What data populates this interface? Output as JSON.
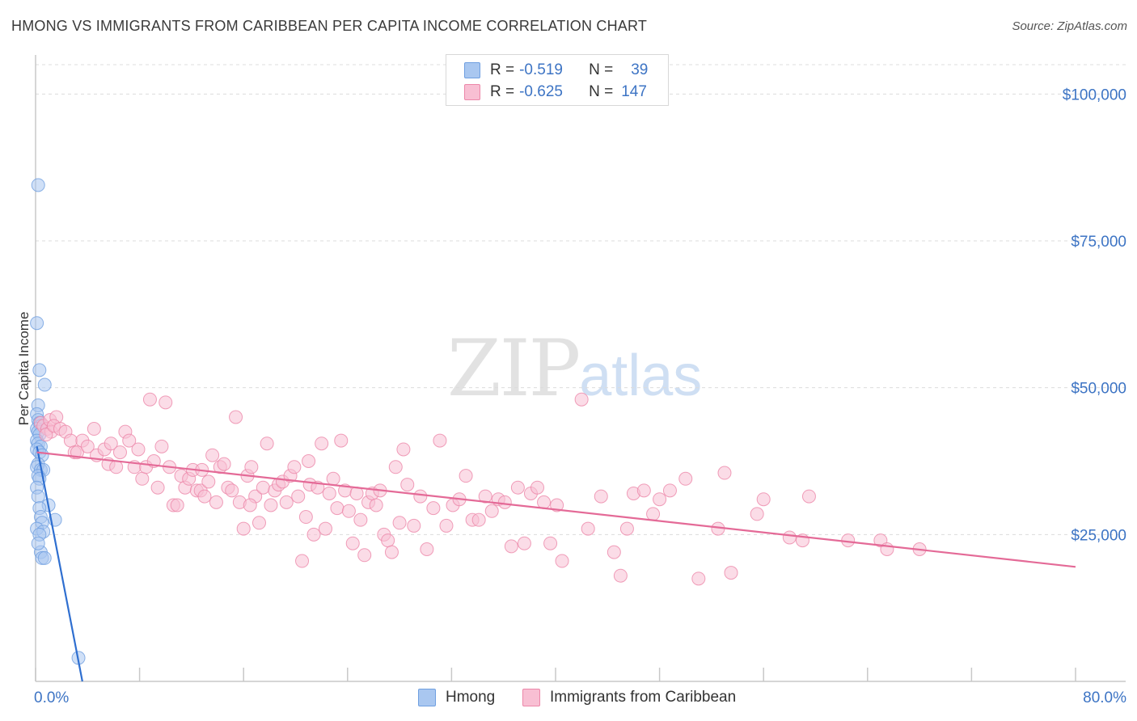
{
  "title": "HMONG VS IMMIGRANTS FROM CARIBBEAN PER CAPITA INCOME CORRELATION CHART",
  "source": "Source: ZipAtlas.com",
  "watermark": {
    "part1": "ZIP",
    "part2": "atlas"
  },
  "legend": {
    "rows": [
      {
        "r_label": "R =",
        "r_value": "-0.519",
        "n_label": "N =",
        "n_value": "39",
        "color": "#a9c7f0",
        "border": "#6f9fe0"
      },
      {
        "r_label": "R =",
        "r_value": "-0.625",
        "n_label": "N =",
        "n_value": "147",
        "color": "#f8bfd3",
        "border": "#ec87a9"
      }
    ]
  },
  "bottom_legend": [
    {
      "label": "Hmong",
      "color": "#a9c7f0",
      "border": "#6f9fe0"
    },
    {
      "label": "Immigrants from Caribbean",
      "color": "#f8bfd3",
      "border": "#ec87a9"
    }
  ],
  "chart_data": {
    "type": "scatter",
    "title": "HMONG VS IMMIGRANTS FROM CARIBBEAN PER CAPITA INCOME CORRELATION CHART",
    "xlabel": "",
    "ylabel": "Per Capita Income",
    "xlim": [
      0,
      80
    ],
    "ylim": [
      0,
      105000
    ],
    "x_tick_labels": [
      "0.0%",
      "80.0%"
    ],
    "y_ticks": [
      25000,
      50000,
      75000,
      100000
    ],
    "y_tick_labels": [
      "$25,000",
      "$50,000",
      "$75,000",
      "$100,000"
    ],
    "grid": true,
    "series": [
      {
        "name": "Hmong",
        "color": "#6f9fe0",
        "fill": "#a9c7f0",
        "trend": {
          "x": [
            0.1,
            3.6
          ],
          "y": [
            40000,
            0
          ]
        },
        "points": [
          [
            0.2,
            84500
          ],
          [
            0.1,
            61000
          ],
          [
            0.3,
            53000
          ],
          [
            0.7,
            50500
          ],
          [
            0.2,
            47000
          ],
          [
            0.1,
            45500
          ],
          [
            0.2,
            44500
          ],
          [
            0.3,
            44000
          ],
          [
            0.4,
            43500
          ],
          [
            0.1,
            43000
          ],
          [
            0.2,
            42500
          ],
          [
            0.3,
            42000
          ],
          [
            0.1,
            41000
          ],
          [
            0.2,
            40500
          ],
          [
            0.4,
            40000
          ],
          [
            0.1,
            39500
          ],
          [
            0.3,
            39000
          ],
          [
            0.5,
            38500
          ],
          [
            0.2,
            37000
          ],
          [
            0.1,
            36500
          ],
          [
            0.4,
            36000
          ],
          [
            0.6,
            36000
          ],
          [
            0.2,
            35000
          ],
          [
            0.3,
            34500
          ],
          [
            0.1,
            33000
          ],
          [
            0.2,
            31500
          ],
          [
            1.0,
            30000
          ],
          [
            0.3,
            29500
          ],
          [
            0.4,
            28000
          ],
          [
            1.5,
            27500
          ],
          [
            0.5,
            27000
          ],
          [
            0.1,
            26000
          ],
          [
            0.6,
            25500
          ],
          [
            0.3,
            25000
          ],
          [
            0.4,
            22000
          ],
          [
            0.5,
            21000
          ],
          [
            0.7,
            21000
          ],
          [
            0.2,
            23500
          ],
          [
            3.3,
            4000
          ]
        ]
      },
      {
        "name": "Immigrants from Caribbean",
        "color": "#ec87a9",
        "fill": "#f8bfd3",
        "trend": {
          "x": [
            0.1,
            80
          ],
          "y": [
            39000,
            19500
          ]
        },
        "points": [
          [
            0.4,
            44000
          ],
          [
            0.6,
            43500
          ],
          [
            0.9,
            43000
          ],
          [
            1.1,
            44500
          ],
          [
            1.2,
            42500
          ],
          [
            1.6,
            45000
          ],
          [
            0.8,
            42000
          ],
          [
            1.4,
            43500
          ],
          [
            1.9,
            43000
          ],
          [
            2.3,
            42500
          ],
          [
            2.7,
            41000
          ],
          [
            3.0,
            39000
          ],
          [
            3.2,
            39000
          ],
          [
            3.6,
            41000
          ],
          [
            4.0,
            40000
          ],
          [
            4.5,
            43000
          ],
          [
            4.7,
            38500
          ],
          [
            5.3,
            39500
          ],
          [
            5.6,
            37000
          ],
          [
            5.8,
            40500
          ],
          [
            6.2,
            36500
          ],
          [
            6.5,
            39000
          ],
          [
            6.9,
            42500
          ],
          [
            7.2,
            41000
          ],
          [
            7.6,
            36500
          ],
          [
            7.9,
            39500
          ],
          [
            8.2,
            34500
          ],
          [
            8.5,
            36500
          ],
          [
            8.8,
            48000
          ],
          [
            9.1,
            37500
          ],
          [
            9.4,
            33000
          ],
          [
            9.7,
            40000
          ],
          [
            10.0,
            47500
          ],
          [
            10.3,
            36500
          ],
          [
            10.6,
            30000
          ],
          [
            10.9,
            30000
          ],
          [
            11.2,
            35000
          ],
          [
            11.5,
            33000
          ],
          [
            11.8,
            34500
          ],
          [
            12.1,
            36000
          ],
          [
            12.4,
            32500
          ],
          [
            12.7,
            32500
          ],
          [
            13.0,
            31500
          ],
          [
            13.3,
            34000
          ],
          [
            13.6,
            38500
          ],
          [
            13.9,
            30500
          ],
          [
            14.2,
            36500
          ],
          [
            14.5,
            37000
          ],
          [
            14.8,
            33000
          ],
          [
            15.1,
            32500
          ],
          [
            15.4,
            45000
          ],
          [
            15.7,
            30500
          ],
          [
            16.0,
            26000
          ],
          [
            16.3,
            35000
          ],
          [
            16.6,
            36500
          ],
          [
            16.9,
            31500
          ],
          [
            17.2,
            27000
          ],
          [
            17.5,
            33000
          ],
          [
            17.8,
            40500
          ],
          [
            18.1,
            30000
          ],
          [
            18.4,
            32500
          ],
          [
            18.7,
            33500
          ],
          [
            19.0,
            34000
          ],
          [
            19.3,
            30500
          ],
          [
            19.6,
            35000
          ],
          [
            19.9,
            36500
          ],
          [
            20.2,
            31500
          ],
          [
            20.5,
            20500
          ],
          [
            20.8,
            28000
          ],
          [
            21.1,
            33500
          ],
          [
            21.4,
            25000
          ],
          [
            21.7,
            33000
          ],
          [
            22.0,
            40500
          ],
          [
            22.3,
            26000
          ],
          [
            22.6,
            32000
          ],
          [
            22.9,
            34500
          ],
          [
            23.2,
            29500
          ],
          [
            23.5,
            41000
          ],
          [
            23.8,
            32500
          ],
          [
            24.1,
            29000
          ],
          [
            24.4,
            23500
          ],
          [
            24.7,
            32000
          ],
          [
            25.0,
            27500
          ],
          [
            25.3,
            21500
          ],
          [
            25.6,
            30500
          ],
          [
            25.9,
            32000
          ],
          [
            26.2,
            30000
          ],
          [
            26.5,
            32500
          ],
          [
            26.8,
            25000
          ],
          [
            27.1,
            24000
          ],
          [
            27.4,
            22000
          ],
          [
            27.7,
            36500
          ],
          [
            28.0,
            27000
          ],
          [
            28.3,
            39500
          ],
          [
            28.6,
            33500
          ],
          [
            29.1,
            26500
          ],
          [
            29.6,
            31500
          ],
          [
            30.1,
            22500
          ],
          [
            30.6,
            29500
          ],
          [
            31.1,
            41000
          ],
          [
            31.6,
            26500
          ],
          [
            32.1,
            30000
          ],
          [
            32.6,
            31000
          ],
          [
            33.1,
            35000
          ],
          [
            33.6,
            27500
          ],
          [
            34.1,
            27500
          ],
          [
            34.6,
            31500
          ],
          [
            35.1,
            29000
          ],
          [
            35.6,
            31000
          ],
          [
            36.1,
            30500
          ],
          [
            36.6,
            23000
          ],
          [
            37.1,
            33000
          ],
          [
            37.6,
            23500
          ],
          [
            38.1,
            32000
          ],
          [
            38.6,
            33000
          ],
          [
            39.1,
            30500
          ],
          [
            39.6,
            23500
          ],
          [
            40.1,
            30000
          ],
          [
            42.0,
            48000
          ],
          [
            42.5,
            26000
          ],
          [
            43.5,
            31500
          ],
          [
            44.5,
            22000
          ],
          [
            45.5,
            26000
          ],
          [
            46.0,
            32000
          ],
          [
            46.8,
            32500
          ],
          [
            47.5,
            28500
          ],
          [
            48.0,
            31000
          ],
          [
            48.8,
            32500
          ],
          [
            50.0,
            34500
          ],
          [
            51.0,
            17500
          ],
          [
            52.5,
            26000
          ],
          [
            53.5,
            18500
          ],
          [
            53.0,
            35500
          ],
          [
            55.5,
            28500
          ],
          [
            56.0,
            31000
          ],
          [
            58.0,
            24500
          ],
          [
            59.5,
            31500
          ],
          [
            62.5,
            24000
          ],
          [
            65.0,
            24000
          ],
          [
            65.5,
            22500
          ],
          [
            68.0,
            22500
          ],
          [
            40.5,
            20500
          ],
          [
            45.0,
            18000
          ],
          [
            59.0,
            24000
          ],
          [
            12.8,
            36000
          ],
          [
            16.5,
            30000
          ],
          [
            21.0,
            37500
          ]
        ]
      }
    ]
  }
}
